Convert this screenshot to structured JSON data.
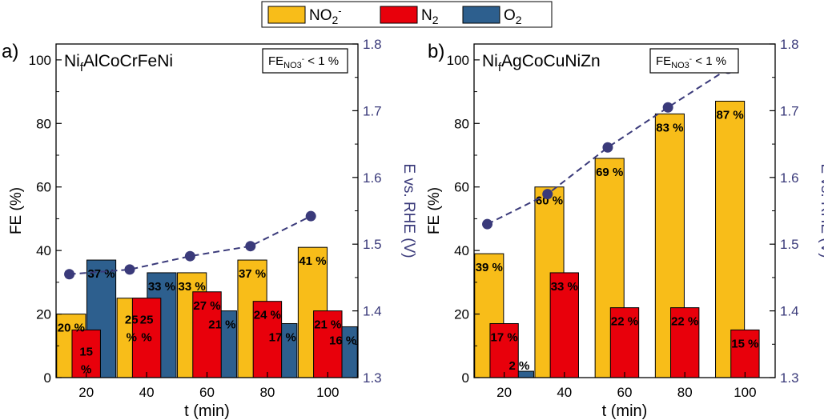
{
  "legend": [
    {
      "label": "NO2-",
      "color": "#f8bd19"
    },
    {
      "label": "N2",
      "color": "#e8000b"
    },
    {
      "label": "O2",
      "color": "#2d5f8e"
    }
  ],
  "colors": {
    "no2": "#f8bd19",
    "n2": "#e8000b",
    "o2": "#2d5f8e",
    "potential": "#3a3a7a"
  },
  "chart_data": [
    {
      "type": "bar",
      "panel": "a)",
      "title": "Ni_f_AlCoCrFeNi",
      "annotation": "FE_NO3- < 1 %",
      "xlabel": "t (min)",
      "ylabel": "FE (%)",
      "y2label": "E vs. RHE (V)",
      "categories": [
        "20",
        "40",
        "60",
        "80",
        "100"
      ],
      "ylim": [
        0,
        105
      ],
      "yticks": [
        0,
        20,
        40,
        60,
        80,
        100
      ],
      "y2lim": [
        1.3,
        1.8
      ],
      "y2ticks": [
        1.3,
        1.4,
        1.5,
        1.6,
        1.7,
        1.8
      ],
      "series": [
        {
          "name": "NO2-",
          "values": [
            20,
            25,
            33,
            37,
            41
          ],
          "labels": [
            "20 %",
            "25 %",
            "33 %",
            "37 %",
            "41 %"
          ]
        },
        {
          "name": "N2",
          "values": [
            15,
            25,
            27,
            24,
            21
          ],
          "labels": [
            "15 %",
            "25 %",
            "27 %",
            "24 %",
            "21 %"
          ]
        },
        {
          "name": "O2",
          "values": [
            37,
            33,
            21,
            17,
            16
          ],
          "labels": [
            "37 %",
            "33 %",
            "21 %",
            "17 %",
            "16 %"
          ]
        }
      ],
      "potential": [
        1.455,
        1.462,
        1.482,
        1.497,
        1.542
      ]
    },
    {
      "type": "bar",
      "panel": "b)",
      "title": "Ni_f_AgCoCuNiZn",
      "annotation": "FE_NO3- < 1 %",
      "xlabel": "t (min)",
      "ylabel": "FE (%)",
      "y2label": "E vs. RHE (V)",
      "categories": [
        "20",
        "40",
        "60",
        "80",
        "100"
      ],
      "ylim": [
        0,
        105
      ],
      "yticks": [
        0,
        20,
        40,
        60,
        80,
        100
      ],
      "y2lim": [
        1.3,
        1.8
      ],
      "y2ticks": [
        1.3,
        1.4,
        1.5,
        1.6,
        1.7,
        1.8
      ],
      "series": [
        {
          "name": "NO2-",
          "values": [
            39,
            60,
            69,
            83,
            87
          ],
          "labels": [
            "39 %",
            "60 %",
            "69 %",
            "83 %",
            "87 %"
          ]
        },
        {
          "name": "N2",
          "values": [
            17,
            33,
            22,
            22,
            15
          ],
          "labels": [
            "17 %",
            "33 %",
            "22 %",
            "22 %",
            "15 %"
          ]
        },
        {
          "name": "O2",
          "values": [
            2,
            null,
            null,
            null,
            null
          ],
          "labels": [
            "2 %",
            "",
            "",
            "",
            ""
          ]
        }
      ],
      "potential": [
        1.53,
        1.575,
        1.645,
        1.705,
        1.763
      ]
    }
  ]
}
